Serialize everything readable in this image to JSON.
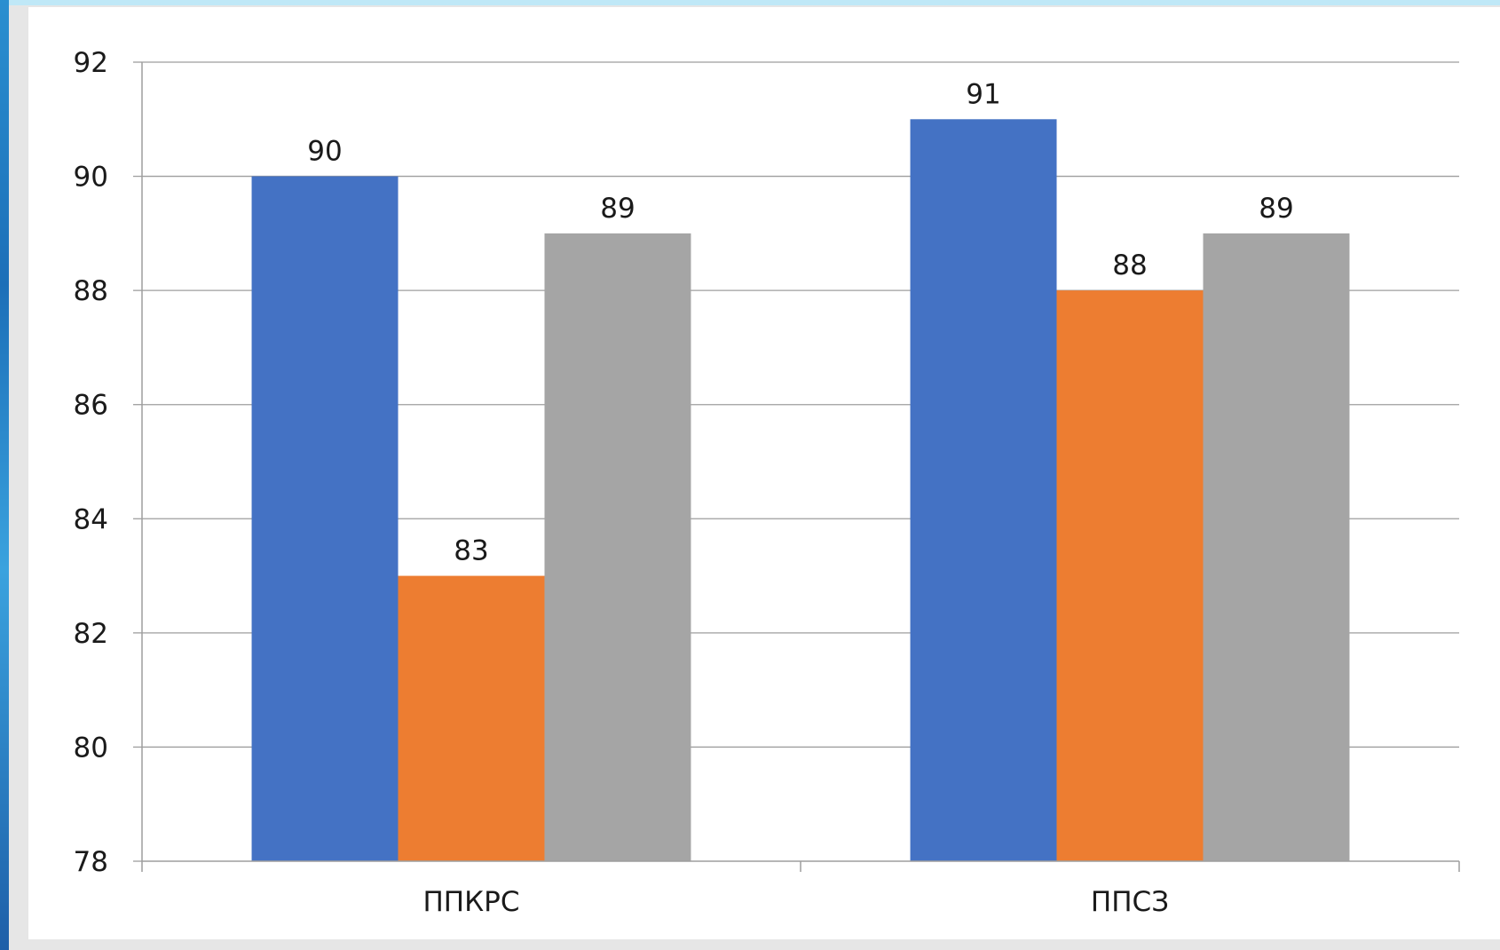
{
  "chart_data": {
    "type": "bar",
    "categories": [
      "ППКРС",
      "ППСЗ"
    ],
    "series": [
      {
        "color": "#4472c4",
        "values": [
          90,
          91
        ]
      },
      {
        "color": "#ed7d31",
        "values": [
          83,
          88
        ]
      },
      {
        "color": "#a5a5a5",
        "values": [
          89,
          89
        ]
      }
    ],
    "ylim": [
      78,
      92
    ],
    "yticks": [
      "78",
      "80",
      "82",
      "84",
      "86",
      "88",
      "90",
      "92"
    ],
    "grid": true,
    "data_labels": true
  }
}
